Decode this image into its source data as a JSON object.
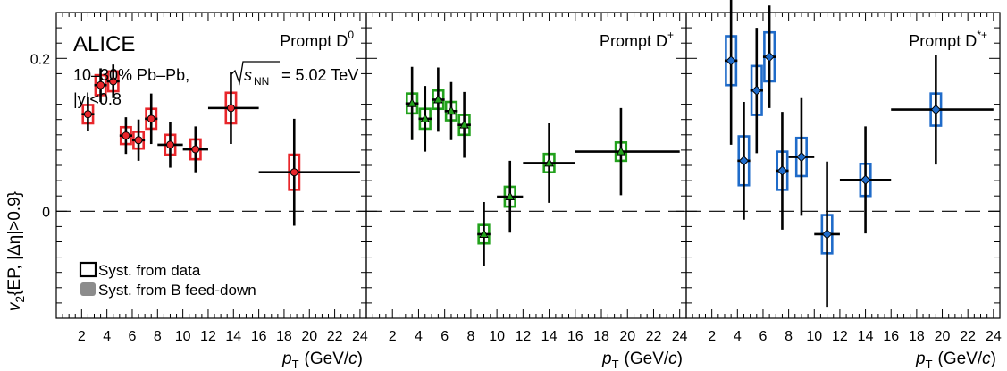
{
  "chart_data": {
    "type": "scatter",
    "experiment": "ALICE",
    "system_label": "10–30% Pb–Pb,",
    "energy_sqrt": "s",
    "energy_sqrt_sub": "NN",
    "energy_value": "= 5.02 TeV",
    "rapidity": "|y|<0.8",
    "ylabel": {
      "main": "v",
      "sub": "2",
      "rest": "{EP, |Δη|>0.9}"
    },
    "xlabel": {
      "main": "p",
      "sub": "T",
      "unit_open": "(GeV/",
      "unit_c": "c",
      "unit_close": ")"
    },
    "xlim": [
      0,
      24.5
    ],
    "ylim": [
      -0.14,
      0.26
    ],
    "xticks": [
      "2",
      "4",
      "6",
      "8",
      "10",
      "12",
      "14",
      "16",
      "18",
      "20",
      "22",
      "24"
    ],
    "yticks": [
      "0",
      "0.2"
    ],
    "legend": [
      {
        "label": "Syst. from data",
        "style": "open-box"
      },
      {
        "label": "Syst. from B feed-down",
        "style": "filled-gray"
      }
    ],
    "panels": [
      {
        "label_main": "Prompt D",
        "label_sup": "0",
        "color": "#e8262b",
        "points": [
          {
            "x": 2.5,
            "xlo": 2.0,
            "xhi": 3.0,
            "y": 0.127,
            "stat": 0.022,
            "syst": 0.012
          },
          {
            "x": 3.5,
            "xlo": 3.0,
            "xhi": 4.0,
            "y": 0.165,
            "stat": 0.022,
            "syst": 0.013
          },
          {
            "x": 4.5,
            "xlo": 4.0,
            "xhi": 5.0,
            "y": 0.17,
            "stat": 0.022,
            "syst": 0.013
          },
          {
            "x": 5.5,
            "xlo": 5.0,
            "xhi": 6.0,
            "y": 0.099,
            "stat": 0.024,
            "syst": 0.011
          },
          {
            "x": 6.5,
            "xlo": 6.0,
            "xhi": 7.0,
            "y": 0.093,
            "stat": 0.027,
            "syst": 0.011
          },
          {
            "x": 7.5,
            "xlo": 7.0,
            "xhi": 8.0,
            "y": 0.121,
            "stat": 0.033,
            "syst": 0.013
          },
          {
            "x": 9.0,
            "xlo": 8.0,
            "xhi": 10.0,
            "y": 0.087,
            "stat": 0.03,
            "syst": 0.013
          },
          {
            "x": 11.0,
            "xlo": 10.0,
            "xhi": 12.0,
            "y": 0.081,
            "stat": 0.03,
            "syst": 0.013
          },
          {
            "x": 13.8,
            "xlo": 12.0,
            "xhi": 16.0,
            "y": 0.135,
            "stat": 0.047,
            "syst": 0.02
          },
          {
            "x": 18.8,
            "xlo": 16.0,
            "xhi": 24.0,
            "y": 0.051,
            "stat": 0.07,
            "syst": 0.023
          }
        ]
      },
      {
        "label_main": "Prompt D",
        "label_sup": "+",
        "color": "#22a11c",
        "points": [
          {
            "x": 3.5,
            "xlo": 3.0,
            "xhi": 4.0,
            "y": 0.141,
            "stat": 0.048,
            "syst": 0.013
          },
          {
            "x": 4.5,
            "xlo": 4.0,
            "xhi": 5.0,
            "y": 0.121,
            "stat": 0.043,
            "syst": 0.013
          },
          {
            "x": 5.5,
            "xlo": 5.0,
            "xhi": 6.0,
            "y": 0.146,
            "stat": 0.042,
            "syst": 0.012
          },
          {
            "x": 6.5,
            "xlo": 6.0,
            "xhi": 7.0,
            "y": 0.131,
            "stat": 0.038,
            "syst": 0.012
          },
          {
            "x": 7.5,
            "xlo": 7.0,
            "xhi": 8.0,
            "y": 0.113,
            "stat": 0.043,
            "syst": 0.013
          },
          {
            "x": 9.0,
            "xlo": 8.5,
            "xhi": 9.5,
            "y": -0.03,
            "stat": 0.042,
            "syst": 0.012
          },
          {
            "x": 11.0,
            "xlo": 10.0,
            "xhi": 12.0,
            "y": 0.019,
            "stat": 0.047,
            "syst": 0.013
          },
          {
            "x": 14.0,
            "xlo": 12.0,
            "xhi": 16.0,
            "y": 0.063,
            "stat": 0.052,
            "syst": 0.012
          },
          {
            "x": 19.5,
            "xlo": 16.0,
            "xhi": 24.0,
            "y": 0.078,
            "stat": 0.057,
            "syst": 0.012
          }
        ]
      },
      {
        "label_main": "Prompt D",
        "label_sup": "*+",
        "color": "#1f6bc9",
        "points": [
          {
            "x": 3.5,
            "xlo": 3.0,
            "xhi": 4.0,
            "y": 0.197,
            "stat": 0.11,
            "syst": 0.032
          },
          {
            "x": 4.5,
            "xlo": 4.0,
            "xhi": 5.0,
            "y": 0.066,
            "stat": 0.077,
            "syst": 0.032
          },
          {
            "x": 5.5,
            "xlo": 5.0,
            "xhi": 6.0,
            "y": 0.158,
            "stat": 0.082,
            "syst": 0.032
          },
          {
            "x": 6.5,
            "xlo": 6.0,
            "xhi": 7.0,
            "y": 0.202,
            "stat": 0.067,
            "syst": 0.032
          },
          {
            "x": 7.5,
            "xlo": 7.0,
            "xhi": 8.0,
            "y": 0.053,
            "stat": 0.077,
            "syst": 0.025
          },
          {
            "x": 9.0,
            "xlo": 8.0,
            "xhi": 10.0,
            "y": 0.071,
            "stat": 0.077,
            "syst": 0.025
          },
          {
            "x": 11.0,
            "xlo": 10.0,
            "xhi": 12.0,
            "y": -0.03,
            "stat": 0.095,
            "syst": 0.025
          },
          {
            "x": 14.0,
            "xlo": 12.0,
            "xhi": 16.0,
            "y": 0.041,
            "stat": 0.07,
            "syst": 0.021
          },
          {
            "x": 19.5,
            "xlo": 16.0,
            "xhi": 24.0,
            "y": 0.133,
            "stat": 0.072,
            "syst": 0.021
          }
        ]
      }
    ]
  }
}
